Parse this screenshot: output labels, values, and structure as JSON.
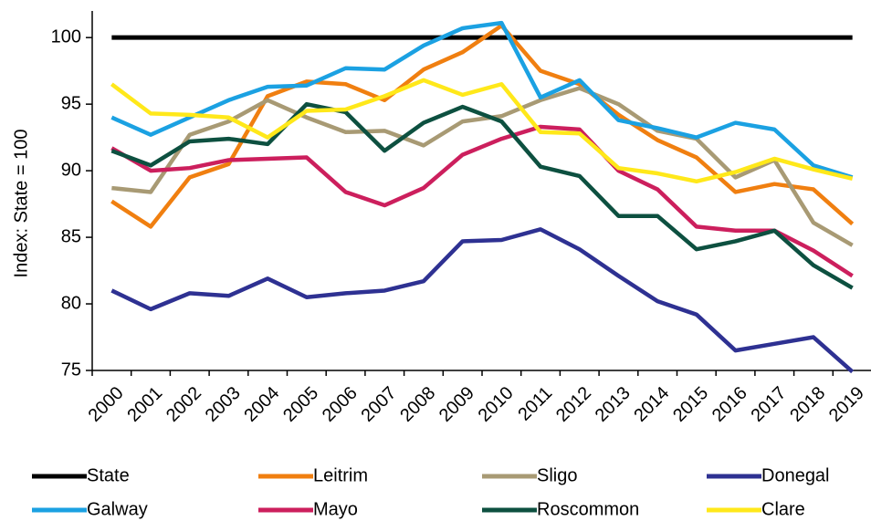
{
  "chart_data": {
    "type": "line",
    "y_label": "Index: State = 100",
    "categories": [
      "2000",
      "2001",
      "2002",
      "2003",
      "2004",
      "2005",
      "2006",
      "2007",
      "2008",
      "2009",
      "2010",
      "2011",
      "2012",
      "2013",
      "2014",
      "2015",
      "2016",
      "2017",
      "2018",
      "2019"
    ],
    "series": [
      {
        "name": "State",
        "color": "#000000",
        "values": [
          100,
          100,
          100,
          100,
          100,
          100,
          100,
          100,
          100,
          100,
          100,
          100,
          100,
          100,
          100,
          100,
          100,
          100,
          100,
          100
        ]
      },
      {
        "name": "Leitrim",
        "color": "#f07f10",
        "values": [
          87.7,
          85.8,
          89.5,
          90.5,
          95.6,
          96.7,
          96.5,
          95.3,
          97.6,
          98.9,
          100.9,
          97.5,
          96.5,
          94.2,
          92.3,
          91.0,
          88.4,
          89.0,
          88.6,
          86.0
        ]
      },
      {
        "name": "Sligo",
        "color": "#a89a74",
        "values": [
          88.7,
          88.4,
          92.7,
          93.7,
          95.3,
          94.0,
          92.9,
          93.0,
          91.9,
          93.7,
          94.1,
          95.3,
          96.2,
          95.0,
          93.0,
          92.4,
          89.5,
          90.8,
          86.1,
          84.4
        ]
      },
      {
        "name": "Donegal",
        "color": "#2e3192",
        "values": [
          81.0,
          79.6,
          80.8,
          80.6,
          81.9,
          80.5,
          80.8,
          81.0,
          81.7,
          84.7,
          84.8,
          85.6,
          84.1,
          82.1,
          80.2,
          79.2,
          76.5,
          77.0,
          77.5,
          74.9
        ]
      },
      {
        "name": "Galway",
        "color": "#1ba1e2",
        "values": [
          94.0,
          92.7,
          94.0,
          95.3,
          96.3,
          96.4,
          97.7,
          97.6,
          99.4,
          100.7,
          101.1,
          95.5,
          96.8,
          93.8,
          93.2,
          92.5,
          93.6,
          93.1,
          90.4,
          89.5
        ]
      },
      {
        "name": "Mayo",
        "color": "#cc1f5d",
        "values": [
          91.7,
          90.0,
          90.2,
          90.8,
          90.9,
          91.0,
          88.4,
          87.4,
          88.7,
          91.2,
          92.4,
          93.3,
          93.1,
          90.0,
          88.6,
          85.8,
          85.5,
          85.5,
          84.0,
          82.1
        ]
      },
      {
        "name": "Roscommon",
        "color": "#0d5040",
        "values": [
          91.5,
          90.4,
          92.2,
          92.4,
          92.0,
          95.0,
          94.4,
          91.5,
          93.6,
          94.8,
          93.7,
          90.3,
          89.6,
          86.6,
          86.6,
          84.1,
          84.7,
          85.5,
          82.9,
          81.2
        ]
      },
      {
        "name": "Clare",
        "color": "#ffe81a",
        "values": [
          96.5,
          94.3,
          94.2,
          94.0,
          92.5,
          94.5,
          94.6,
          95.6,
          96.8,
          95.7,
          96.5,
          92.9,
          92.8,
          90.2,
          89.8,
          89.2,
          89.9,
          90.9,
          90.1,
          89.4
        ]
      }
    ],
    "ylim": [
      75,
      102
    ],
    "yticks": [
      75,
      80,
      85,
      90,
      95,
      100
    ],
    "grid": false,
    "legend": "bottom"
  }
}
